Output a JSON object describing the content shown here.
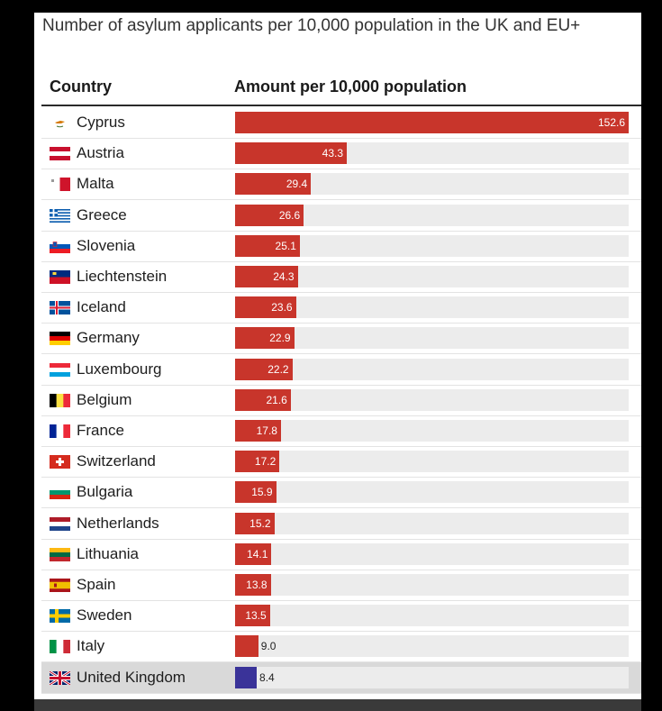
{
  "chart_data": {
    "type": "bar",
    "orientation": "horizontal",
    "title": "Number of asylum applicants per 10,000 population in the UK and EU+",
    "category_header": "Country",
    "value_header": "Amount per 10,000 population",
    "categories": [
      "Cyprus",
      "Austria",
      "Malta",
      "Greece",
      "Slovenia",
      "Liechtenstein",
      "Iceland",
      "Germany",
      "Luxembourg",
      "Belgium",
      "France",
      "Switzerland",
      "Bulgaria",
      "Netherlands",
      "Lithuania",
      "Spain",
      "Sweden",
      "Italy",
      "United Kingdom"
    ],
    "values": [
      152.6,
      43.3,
      29.4,
      26.6,
      25.1,
      24.3,
      23.6,
      22.9,
      22.2,
      21.6,
      17.8,
      17.2,
      15.9,
      15.2,
      14.1,
      13.8,
      13.5,
      9.0,
      8.4
    ],
    "value_labels": [
      "152.6",
      "43.3",
      "29.4",
      "26.6",
      "25.1",
      "24.3",
      "23.6",
      "22.9",
      "22.2",
      "21.6",
      "17.8",
      "17.2",
      "15.9",
      "15.2",
      "14.1",
      "13.8",
      "13.5",
      "9.0",
      "8.4"
    ],
    "highlight": "United Kingdom",
    "xlim": [
      0,
      152.6
    ],
    "grid": false,
    "colors": {
      "bar": "#c8352b",
      "highlight_bar": "#3a3399"
    },
    "flag_icons": [
      "cyprus-flag-icon",
      "austria-flag-icon",
      "malta-flag-icon",
      "greece-flag-icon",
      "slovenia-flag-icon",
      "liechtenstein-flag-icon",
      "iceland-flag-icon",
      "germany-flag-icon",
      "luxembourg-flag-icon",
      "belgium-flag-icon",
      "france-flag-icon",
      "switzerland-flag-icon",
      "bulgaria-flag-icon",
      "netherlands-flag-icon",
      "lithuania-flag-icon",
      "spain-flag-icon",
      "sweden-flag-icon",
      "italy-flag-icon",
      "united-kingdom-flag-icon"
    ]
  }
}
